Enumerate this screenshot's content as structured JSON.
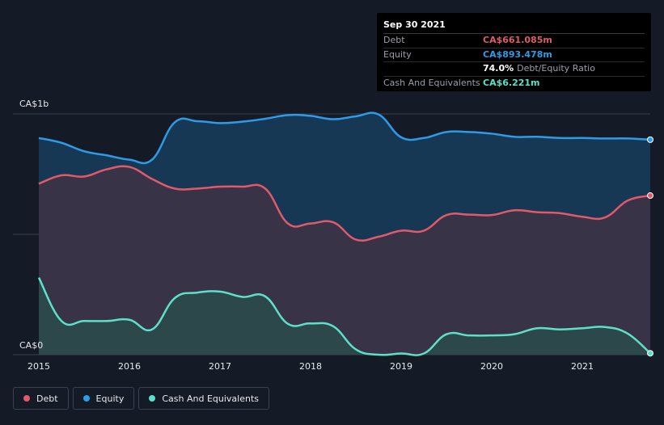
{
  "chart_data": {
    "type": "area",
    "y_labels": [
      "CA$1b",
      "CA$0"
    ],
    "ylim": [
      0,
      1000
    ],
    "xlim": [
      2015,
      2021.78
    ],
    "x_ticks": [
      "2015",
      "2016",
      "2017",
      "2018",
      "2019",
      "2020",
      "2021"
    ],
    "series": [
      {
        "name": "Debt",
        "color": "#e05a6a",
        "x": [
          2015.0,
          2015.25,
          2015.5,
          2015.75,
          2016.0,
          2016.25,
          2016.5,
          2016.75,
          2017.0,
          2017.25,
          2017.5,
          2017.75,
          2018.0,
          2018.25,
          2018.5,
          2018.75,
          2019.0,
          2019.25,
          2019.5,
          2019.75,
          2020.0,
          2020.25,
          2020.5,
          2020.75,
          2021.0,
          2021.25,
          2021.5,
          2021.75
        ],
        "values": [
          710,
          745,
          740,
          770,
          780,
          730,
          690,
          690,
          698,
          698,
          690,
          545,
          545,
          550,
          478,
          490,
          515,
          515,
          580,
          582,
          580,
          600,
          592,
          588,
          573,
          570,
          640,
          661
        ]
      },
      {
        "name": "Equity",
        "color": "#2e9be8",
        "x": [
          2015.0,
          2015.25,
          2015.5,
          2015.75,
          2016.0,
          2016.25,
          2016.5,
          2016.75,
          2017.0,
          2017.25,
          2017.5,
          2017.75,
          2018.0,
          2018.25,
          2018.5,
          2018.75,
          2019.0,
          2019.25,
          2019.5,
          2019.75,
          2020.0,
          2020.25,
          2020.5,
          2020.75,
          2021.0,
          2021.25,
          2021.5,
          2021.75
        ],
        "values": [
          900,
          880,
          845,
          828,
          810,
          810,
          965,
          970,
          962,
          968,
          980,
          995,
          992,
          978,
          990,
          998,
          903,
          900,
          925,
          925,
          918,
          905,
          905,
          900,
          900,
          898,
          898,
          893
        ]
      },
      {
        "name": "Cash And Equivalents",
        "color": "#5ee0c8",
        "x": [
          2015.0,
          2015.25,
          2015.5,
          2015.75,
          2016.0,
          2016.25,
          2016.5,
          2016.75,
          2017.0,
          2017.25,
          2017.5,
          2017.75,
          2018.0,
          2018.25,
          2018.5,
          2018.75,
          2019.0,
          2019.25,
          2019.5,
          2019.75,
          2020.0,
          2020.25,
          2020.5,
          2020.75,
          2021.0,
          2021.25,
          2021.5,
          2021.75
        ],
        "values": [
          320,
          140,
          140,
          140,
          145,
          105,
          235,
          258,
          262,
          240,
          242,
          128,
          130,
          118,
          22,
          0,
          5,
          5,
          85,
          80,
          80,
          85,
          110,
          105,
          110,
          115,
          88,
          6
        ]
      }
    ]
  },
  "tooltip": {
    "date": "Sep 30 2021",
    "rows": [
      {
        "label": "Debt",
        "value": "CA$661.085m",
        "color": "#e05a6a",
        "suffix": ""
      },
      {
        "label": "Equity",
        "value": "CA$893.478m",
        "color": "#2e9be8",
        "suffix": ""
      },
      {
        "label": "",
        "value": "74.0%",
        "color": "#ffffff",
        "suffix": "Debt/Equity Ratio"
      },
      {
        "label": "Cash And Equivalents",
        "value": "CA$6.221m",
        "color": "#5ee0c8",
        "suffix": ""
      }
    ]
  },
  "legend": [
    {
      "label": "Debt",
      "color": "#e05a6a"
    },
    {
      "label": "Equity",
      "color": "#2e9be8"
    },
    {
      "label": "Cash And Equivalents",
      "color": "#5ee0c8"
    }
  ]
}
